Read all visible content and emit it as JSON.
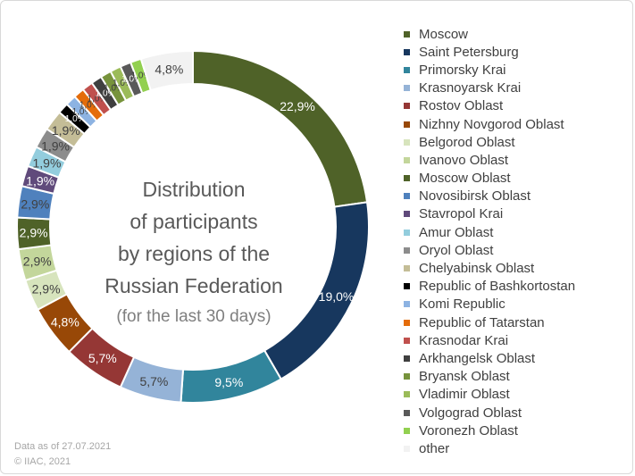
{
  "chart_data": {
    "type": "pie",
    "variant": "donut",
    "title_lines": [
      "Distribution",
      "of participants",
      "by regions of the",
      "Russian Federation"
    ],
    "subtitle": "(for the last 30 days)",
    "legend_position": "right",
    "slices": [
      {
        "name": "Moscow",
        "value": 22.9,
        "label": "22,9%",
        "color": "#4f6228"
      },
      {
        "name": "Saint Petersburg",
        "value": 19.0,
        "label": "19,0%",
        "color": "#17375e"
      },
      {
        "name": "Primorsky Krai",
        "value": 9.5,
        "label": "9,5%",
        "color": "#31859c"
      },
      {
        "name": "Krasnoyarsk Krai",
        "value": 5.7,
        "label": "5,7%",
        "color": "#95b3d7"
      },
      {
        "name": "Rostov Oblast",
        "value": 5.7,
        "label": "5,7%",
        "color": "#953735"
      },
      {
        "name": "Nizhny Novgorod Oblast",
        "value": 4.8,
        "label": "4,8%",
        "color": "#984807"
      },
      {
        "name": "Belgorod Oblast",
        "value": 2.9,
        "label": "2,9%",
        "color": "#d7e4bd"
      },
      {
        "name": "Ivanovo Oblast",
        "value": 2.9,
        "label": "2,9%",
        "color": "#c3d69b"
      },
      {
        "name": "Moscow Oblast",
        "value": 2.9,
        "label": "2,9%",
        "color": "#4f6228"
      },
      {
        "name": "Novosibirsk Oblast",
        "value": 2.9,
        "label": "2,9%",
        "color": "#4f81bd"
      },
      {
        "name": "Stavropol Krai",
        "value": 1.9,
        "label": "1,9%",
        "color": "#604a7b"
      },
      {
        "name": "Amur Oblast",
        "value": 1.9,
        "label": "1,9%",
        "color": "#93cddd"
      },
      {
        "name": "Oryol Oblast",
        "value": 1.9,
        "label": "1,9%",
        "color": "#8c8c8c"
      },
      {
        "name": "Chelyabinsk Oblast",
        "value": 1.9,
        "label": "1,9%",
        "color": "#c4bd97"
      },
      {
        "name": "Republic of Bashkortostan",
        "value": 1.0,
        "label": "1,0%",
        "color": "#000000"
      },
      {
        "name": "Komi Republic",
        "value": 1.0,
        "label": "1,0%",
        "color": "#8db3e2"
      },
      {
        "name": "Republic of Tatarstan",
        "value": 1.0,
        "label": "1,0%",
        "color": "#e46c0a"
      },
      {
        "name": "Krasnodar Krai",
        "value": 1.0,
        "label": "1,0%",
        "color": "#c0504d"
      },
      {
        "name": "Arkhangelsk Oblast",
        "value": 1.0,
        "label": "1,0%",
        "color": "#3f3f3f"
      },
      {
        "name": "Bryansk Oblast",
        "value": 1.0,
        "label": "1,0%",
        "color": "#77933c"
      },
      {
        "name": "Vladimir Oblast",
        "value": 1.0,
        "label": "1,0%",
        "color": "#9bbb59"
      },
      {
        "name": "Volgograd Oblast",
        "value": 1.0,
        "label": "1,0%",
        "color": "#595959"
      },
      {
        "name": "Voronezh Oblast",
        "value": 1.0,
        "label": "1,0%",
        "color": "#92d050"
      },
      {
        "name": "other",
        "value": 4.8,
        "label": "4,8%",
        "color": "#f2f2f2"
      }
    ]
  },
  "footer": {
    "date_note": "Data as of 27.07.2021",
    "copyright": "© IIAC, 2021"
  }
}
